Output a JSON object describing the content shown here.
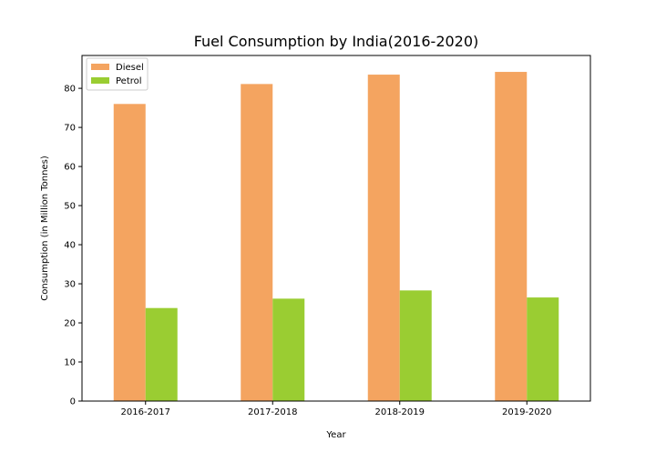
{
  "chart_data": {
    "type": "bar",
    "title": "Fuel Consumption by India(2016-2020)",
    "xlabel": "Year",
    "ylabel": "Consumption (in Million Tonnes)",
    "categories": [
      "2016-2017",
      "2017-2018",
      "2018-2019",
      "2019-2020"
    ],
    "series": [
      {
        "name": "Diesel",
        "color": "#f4a460",
        "values": [
          76.0,
          81.1,
          83.5,
          84.2
        ]
      },
      {
        "name": "Petrol",
        "color": "#9acd32",
        "values": [
          23.8,
          26.2,
          28.3,
          26.5
        ]
      }
    ],
    "ylim": [
      0,
      88.4
    ],
    "yticks": [
      0,
      10,
      20,
      30,
      40,
      50,
      60,
      70,
      80
    ],
    "grid": false,
    "legend_position": "top-left"
  }
}
